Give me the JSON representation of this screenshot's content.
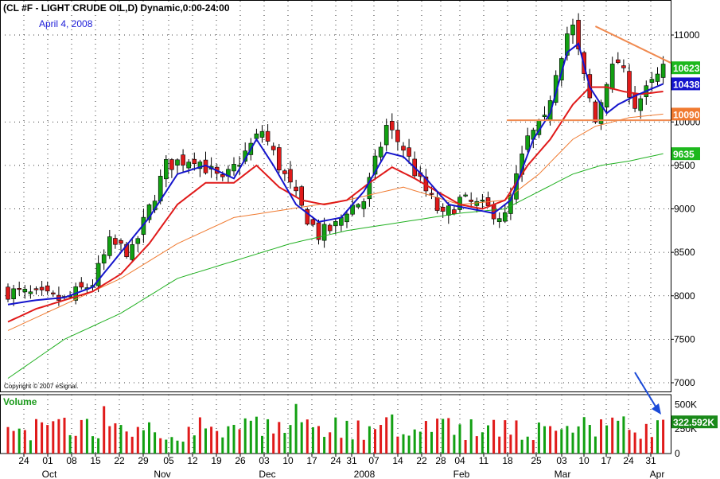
{
  "header": {
    "title": "(CL #F - LIGHT CRUDE OIL,D) Dynamic,0:00-24:00",
    "subtitle": "April 4, 2008",
    "copyright": "Copyright © 2007 eSignal.",
    "volume_label": "Volume"
  },
  "colors": {
    "up_candle": "#12a012",
    "down_candle": "#e01a1a",
    "ma_fast": "#1414cc",
    "ma_mid": "#e01a1a",
    "ma_slow": "#f07a30",
    "ma_long": "#20b020",
    "resistance_line": "#f08a50",
    "arrow": "#1a4ad8",
    "grid": "#000000"
  },
  "chart_data": {
    "type": "candlestick",
    "title": "(CL #F - LIGHT CRUDE OIL,D) Dynamic,0:00-24:00",
    "subtitle": "April 4, 2008",
    "y_ticks": [
      7000,
      7500,
      8000,
      8500,
      9000,
      9500,
      10000,
      11000
    ],
    "ylim": [
      6700,
      11300
    ],
    "x_day_labels": [
      "24",
      "01",
      "08",
      "15",
      "22",
      "29",
      "05",
      "12",
      "19",
      "26",
      "03",
      "10",
      "17",
      "24",
      "31",
      "07",
      "14",
      "22",
      "28",
      "04",
      "11",
      "18",
      "25",
      "03",
      "10",
      "17",
      "24",
      "31"
    ],
    "x_month_labels": [
      {
        "label": "Oct",
        "at": "01"
      },
      {
        "label": "Nov",
        "at": "29"
      },
      {
        "label": "Dec",
        "at": "03"
      },
      {
        "label": "2008",
        "at": "31"
      },
      {
        "label": "Feb",
        "at": "04"
      },
      {
        "label": "Mar",
        "at": "03"
      },
      {
        "label": "Apr",
        "at": "31"
      }
    ],
    "price_tags": [
      {
        "label": "10623",
        "value": 10623,
        "color": "#1eb81e"
      },
      {
        "label": "10438",
        "value": 10438,
        "color": "#1414cc"
      },
      {
        "label": "10090",
        "value": 10090,
        "color": "#f07a30"
      },
      {
        "label": "9635",
        "value": 9635,
        "color": "#1eb81e"
      }
    ],
    "close_path": [
      [
        0,
        8050
      ],
      [
        5,
        8000
      ],
      [
        10,
        7950
      ],
      [
        15,
        8150
      ],
      [
        18,
        8600
      ],
      [
        22,
        8500
      ],
      [
        28,
        9500
      ],
      [
        33,
        9600
      ],
      [
        38,
        9300
      ],
      [
        45,
        9900
      ],
      [
        48,
        9500
      ],
      [
        52,
        9000
      ],
      [
        55,
        8700
      ],
      [
        58,
        8800
      ],
      [
        60,
        9000
      ],
      [
        63,
        9100
      ],
      [
        67,
        9950
      ],
      [
        70,
        9700
      ],
      [
        73,
        9300
      ],
      [
        77,
        8900
      ],
      [
        80,
        9100
      ],
      [
        85,
        9000
      ],
      [
        88,
        8900
      ],
      [
        92,
        9800
      ],
      [
        95,
        10000
      ],
      [
        97,
        10600
      ],
      [
        99,
        11020
      ],
      [
        100,
        11080
      ],
      [
        102,
        10500
      ],
      [
        104,
        10000
      ],
      [
        106,
        10500
      ],
      [
        108,
        10700
      ],
      [
        111,
        10200
      ],
      [
        113,
        10350
      ],
      [
        116,
        10600
      ]
    ],
    "ma_fast_path": [
      [
        0,
        7900
      ],
      [
        5,
        7950
      ],
      [
        10,
        7980
      ],
      [
        15,
        8100
      ],
      [
        20,
        8500
      ],
      [
        25,
        8900
      ],
      [
        30,
        9400
      ],
      [
        35,
        9500
      ],
      [
        40,
        9350
      ],
      [
        44,
        9800
      ],
      [
        47,
        9500
      ],
      [
        51,
        9050
      ],
      [
        55,
        8850
      ],
      [
        59,
        8900
      ],
      [
        63,
        9200
      ],
      [
        67,
        9650
      ],
      [
        70,
        9600
      ],
      [
        74,
        9350
      ],
      [
        78,
        9050
      ],
      [
        82,
        9000
      ],
      [
        86,
        8950
      ],
      [
        89,
        9100
      ],
      [
        93,
        9800
      ],
      [
        96,
        10100
      ],
      [
        99,
        10800
      ],
      [
        101,
        10900
      ],
      [
        103,
        10400
      ],
      [
        106,
        10100
      ],
      [
        108,
        10200
      ],
      [
        111,
        10300
      ],
      [
        116,
        10438
      ]
    ],
    "ma_mid_path": [
      [
        0,
        7700
      ],
      [
        5,
        7850
      ],
      [
        10,
        7950
      ],
      [
        15,
        8050
      ],
      [
        20,
        8250
      ],
      [
        25,
        8600
      ],
      [
        30,
        9050
      ],
      [
        35,
        9300
      ],
      [
        40,
        9300
      ],
      [
        44,
        9500
      ],
      [
        48,
        9250
      ],
      [
        52,
        9100
      ],
      [
        56,
        9050
      ],
      [
        60,
        9100
      ],
      [
        64,
        9300
      ],
      [
        68,
        9480
      ],
      [
        72,
        9350
      ],
      [
        76,
        9200
      ],
      [
        80,
        9050
      ],
      [
        84,
        9000
      ],
      [
        88,
        9100
      ],
      [
        92,
        9500
      ],
      [
        96,
        9800
      ],
      [
        100,
        10200
      ],
      [
        103,
        10400
      ],
      [
        106,
        10400
      ],
      [
        109,
        10350
      ],
      [
        112,
        10320
      ],
      [
        116,
        10350
      ]
    ],
    "ma_slow_path": [
      [
        0,
        7600
      ],
      [
        10,
        7900
      ],
      [
        20,
        8200
      ],
      [
        30,
        8600
      ],
      [
        40,
        8900
      ],
      [
        50,
        9000
      ],
      [
        60,
        9100
      ],
      [
        70,
        9250
      ],
      [
        80,
        9050
      ],
      [
        88,
        9100
      ],
      [
        94,
        9400
      ],
      [
        100,
        9800
      ],
      [
        104,
        9950
      ],
      [
        110,
        10050
      ],
      [
        116,
        10090
      ]
    ],
    "ma_long_path": [
      [
        0,
        7050
      ],
      [
        10,
        7500
      ],
      [
        20,
        7800
      ],
      [
        30,
        8200
      ],
      [
        40,
        8400
      ],
      [
        50,
        8600
      ],
      [
        60,
        8750
      ],
      [
        70,
        8850
      ],
      [
        80,
        8950
      ],
      [
        88,
        9000
      ],
      [
        94,
        9200
      ],
      [
        100,
        9400
      ],
      [
        105,
        9500
      ],
      [
        110,
        9550
      ],
      [
        116,
        9635
      ]
    ],
    "volume": {
      "label": "Volume",
      "ticks": [
        0,
        250000,
        500000
      ],
      "tick_labels": [
        "0",
        "250K",
        "500K"
      ],
      "ylim": [
        0,
        600000
      ],
      "last_value_label": "322.592K",
      "last_value": 322592
    }
  }
}
